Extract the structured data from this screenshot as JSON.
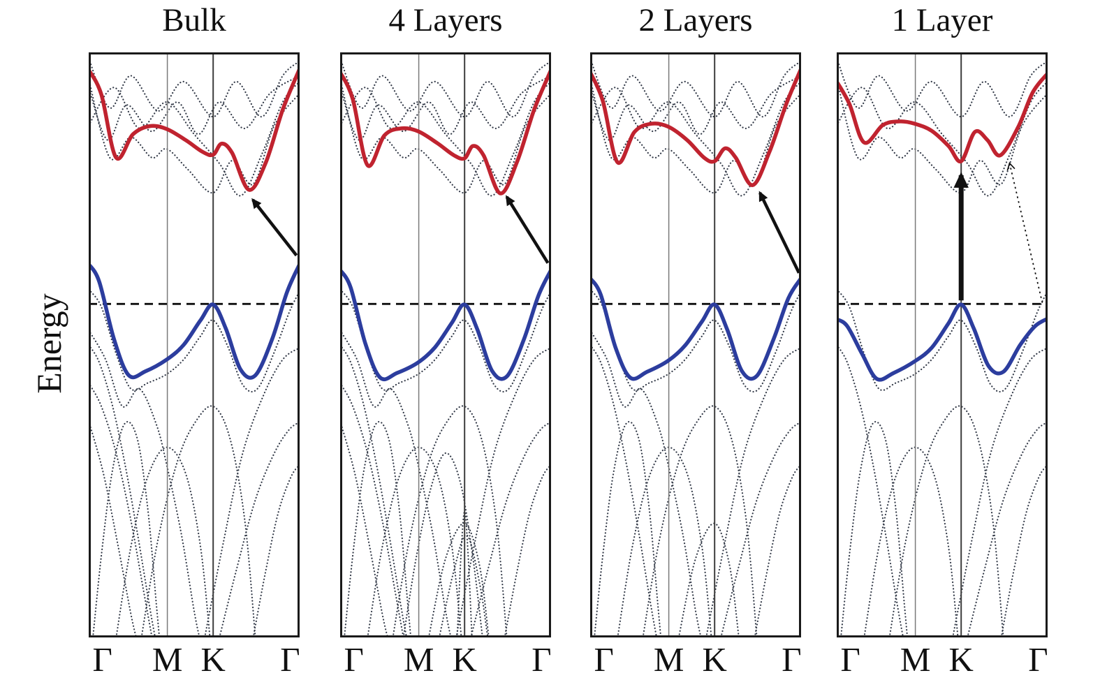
{
  "chart_data": {
    "type": "line",
    "chart_kind": "electronic-band-structure",
    "ylabel": "Energy",
    "x_path": [
      "Γ",
      "M",
      "K",
      "Γ"
    ],
    "x_tick_positions": [
      0.065,
      0.373,
      0.59,
      0.955
    ],
    "k_line_positions": [
      0.373,
      0.59
    ],
    "fermi_level_y": 0.43,
    "coordinate_note": "normalized panel coordinates: x runs 0-1 along the k-path Γ-M-K-Γ; y 0 = panel top, 1 = panel bottom (energy decreases downward); no numeric energy scale is shown",
    "legend": "none",
    "grid": "off",
    "colors": {
      "conduction_band": "#c0232f",
      "valence_band": "#2c3d9e",
      "background_bands": "#343b49",
      "fermi_line": "#111111",
      "arrow": "#111111",
      "frame": "#1a1a1a"
    },
    "background_bands": [
      [
        [
          0,
          0.01
        ],
        [
          0.1,
          0.095
        ],
        [
          0.2,
          0.04
        ],
        [
          0.33,
          0.1
        ],
        [
          0.45,
          0.05
        ],
        [
          0.59,
          0.11
        ],
        [
          0.7,
          0.05
        ],
        [
          0.82,
          0.11
        ],
        [
          0.92,
          0.04
        ],
        [
          1,
          0.015
        ]
      ],
      [
        [
          0,
          0.06
        ],
        [
          0.09,
          0.15
        ],
        [
          0.18,
          0.09
        ],
        [
          0.3,
          0.135
        ],
        [
          0.42,
          0.085
        ],
        [
          0.52,
          0.14
        ],
        [
          0.62,
          0.085
        ],
        [
          0.74,
          0.13
        ],
        [
          0.86,
          0.07
        ],
        [
          1,
          0.04
        ]
      ],
      [
        [
          0,
          0.125
        ],
        [
          0.12,
          0.06
        ],
        [
          0.24,
          0.13
        ],
        [
          0.37,
          0.085
        ],
        [
          0.5,
          0.14
        ],
        [
          0.62,
          0.19
        ],
        [
          0.72,
          0.245
        ],
        [
          0.82,
          0.175
        ],
        [
          0.92,
          0.085
        ],
        [
          1,
          0.05
        ]
      ],
      [
        [
          0,
          0.045
        ],
        [
          0.1,
          0.18
        ],
        [
          0.2,
          0.145
        ],
        [
          0.3,
          0.18
        ],
        [
          0.37,
          0.165
        ],
        [
          0.47,
          0.2
        ],
        [
          0.59,
          0.24
        ],
        [
          0.68,
          0.185
        ],
        [
          0.78,
          0.225
        ],
        [
          0.88,
          0.125
        ],
        [
          1,
          0.07
        ]
      ],
      [
        [
          0,
          0.405
        ],
        [
          0.06,
          0.435
        ],
        [
          0.13,
          0.515
        ],
        [
          0.2,
          0.575
        ],
        [
          0.28,
          0.565
        ],
        [
          0.37,
          0.55
        ],
        [
          0.45,
          0.525
        ],
        [
          0.53,
          0.485
        ],
        [
          0.59,
          0.458
        ],
        [
          0.66,
          0.503
        ],
        [
          0.73,
          0.568
        ],
        [
          0.8,
          0.575
        ],
        [
          0.88,
          0.512
        ],
        [
          0.95,
          0.445
        ],
        [
          1,
          0.408
        ]
      ],
      [
        [
          0,
          0.5
        ],
        [
          0.05,
          0.53
        ],
        [
          0.11,
          0.6
        ],
        [
          0.17,
          0.7
        ],
        [
          0.23,
          0.82
        ],
        [
          0.29,
          0.95
        ],
        [
          0.315,
          1.0
        ]
      ],
      [
        [
          0,
          0.565
        ],
        [
          0.06,
          0.605
        ],
        [
          0.13,
          0.685
        ],
        [
          0.2,
          0.8
        ],
        [
          0.26,
          0.92
        ],
        [
          0.3,
          1.0
        ]
      ],
      [
        [
          0.02,
          1.0
        ],
        [
          0.06,
          0.86
        ],
        [
          0.11,
          0.72
        ],
        [
          0.17,
          0.635
        ],
        [
          0.23,
          0.66
        ],
        [
          0.28,
          0.78
        ],
        [
          0.32,
          0.94
        ],
        [
          0.335,
          1.0
        ]
      ],
      [
        [
          0.13,
          1.0
        ],
        [
          0.2,
          0.845
        ],
        [
          0.28,
          0.725
        ],
        [
          0.37,
          0.675
        ],
        [
          0.46,
          0.72
        ],
        [
          0.53,
          0.845
        ],
        [
          0.575,
          1.0
        ]
      ],
      [
        [
          0.25,
          1.0
        ],
        [
          0.33,
          0.83
        ],
        [
          0.42,
          0.7
        ],
        [
          0.5,
          0.635
        ],
        [
          0.59,
          0.605
        ],
        [
          0.67,
          0.66
        ],
        [
          0.74,
          0.8
        ],
        [
          0.79,
          1.0
        ]
      ],
      [
        [
          0.42,
          1.0
        ],
        [
          0.5,
          0.865
        ],
        [
          0.59,
          0.805
        ],
        [
          0.66,
          0.875
        ],
        [
          0.705,
          1.0
        ]
      ],
      [
        [
          0.55,
          1.0
        ],
        [
          0.64,
          0.835
        ],
        [
          0.73,
          0.685
        ],
        [
          0.83,
          0.585
        ],
        [
          0.92,
          0.525
        ],
        [
          1,
          0.505
        ]
      ],
      [
        [
          0.62,
          1.0
        ],
        [
          0.7,
          0.885
        ],
        [
          0.79,
          0.765
        ],
        [
          0.88,
          0.685
        ],
        [
          0.95,
          0.645
        ],
        [
          1,
          0.632
        ]
      ],
      [
        [
          0,
          0.63
        ],
        [
          0.07,
          0.72
        ],
        [
          0.14,
          0.845
        ],
        [
          0.2,
          0.96
        ],
        [
          0.225,
          1.0
        ]
      ],
      [
        [
          0.78,
          1.0
        ],
        [
          0.84,
          0.885
        ],
        [
          0.9,
          0.785
        ],
        [
          0.96,
          0.725
        ],
        [
          1,
          0.705
        ]
      ],
      [
        [
          0.555,
          1.0
        ],
        [
          0.573,
          0.86
        ],
        [
          0.59,
          0.785
        ],
        [
          0.607,
          0.86
        ],
        [
          0.625,
          1.0
        ]
      ],
      [
        [
          0,
          0.475
        ],
        [
          0.08,
          0.525
        ],
        [
          0.16,
          0.605
        ],
        [
          0.24,
          0.575
        ],
        [
          0.32,
          0.635
        ],
        [
          0.37,
          0.705
        ],
        [
          0.44,
          0.825
        ],
        [
          0.5,
          0.955
        ],
        [
          0.525,
          1.0
        ]
      ],
      [
        [
          0.3,
          1.0
        ],
        [
          0.36,
          0.865
        ],
        [
          0.43,
          0.745
        ],
        [
          0.5,
          0.685
        ],
        [
          0.57,
          0.735
        ],
        [
          0.63,
          0.865
        ],
        [
          0.675,
          1.0
        ]
      ],
      [
        [
          0.47,
          1.0
        ],
        [
          0.54,
          0.885
        ],
        [
          0.6,
          0.825
        ],
        [
          0.66,
          0.905
        ],
        [
          0.7,
          1.0
        ]
      ]
    ],
    "panels": [
      {
        "title": "Bulk",
        "gap_type": "indirect",
        "conduction_band": [
          [
            0,
            0.03
          ],
          [
            0.06,
            0.072
          ],
          [
            0.13,
            0.18
          ],
          [
            0.21,
            0.14
          ],
          [
            0.29,
            0.126
          ],
          [
            0.37,
            0.131
          ],
          [
            0.46,
            0.15
          ],
          [
            0.54,
            0.17
          ],
          [
            0.59,
            0.175
          ],
          [
            0.63,
            0.156
          ],
          [
            0.68,
            0.172
          ],
          [
            0.76,
            0.235
          ],
          [
            0.84,
            0.188
          ],
          [
            0.92,
            0.098
          ],
          [
            1,
            0.028
          ]
        ],
        "valence_band": [
          [
            0,
            0.362
          ],
          [
            0.05,
            0.392
          ],
          [
            0.12,
            0.49
          ],
          [
            0.19,
            0.552
          ],
          [
            0.27,
            0.545
          ],
          [
            0.37,
            0.525
          ],
          [
            0.45,
            0.5
          ],
          [
            0.53,
            0.458
          ],
          [
            0.59,
            0.431
          ],
          [
            0.65,
            0.472
          ],
          [
            0.72,
            0.542
          ],
          [
            0.79,
            0.552
          ],
          [
            0.87,
            0.49
          ],
          [
            0.94,
            0.41
          ],
          [
            1,
            0.362
          ]
        ],
        "background_band_indices": [
          0,
          1,
          2,
          3,
          4,
          5,
          6,
          7,
          8,
          9,
          11,
          12,
          13,
          14,
          16
        ],
        "arrows": [
          {
            "style": "solid",
            "width": 4.5,
            "from": [
              0.985,
              0.347
            ],
            "to": [
              0.778,
              0.252
            ]
          }
        ]
      },
      {
        "title": "4 Layers",
        "gap_type": "indirect",
        "conduction_band": [
          [
            0,
            0.034
          ],
          [
            0.06,
            0.08
          ],
          [
            0.13,
            0.193
          ],
          [
            0.21,
            0.142
          ],
          [
            0.29,
            0.13
          ],
          [
            0.37,
            0.135
          ],
          [
            0.46,
            0.155
          ],
          [
            0.54,
            0.176
          ],
          [
            0.59,
            0.181
          ],
          [
            0.63,
            0.16
          ],
          [
            0.68,
            0.176
          ],
          [
            0.76,
            0.241
          ],
          [
            0.84,
            0.186
          ],
          [
            0.92,
            0.098
          ],
          [
            1,
            0.03
          ]
        ],
        "valence_band": [
          [
            0,
            0.372
          ],
          [
            0.05,
            0.402
          ],
          [
            0.12,
            0.498
          ],
          [
            0.19,
            0.556
          ],
          [
            0.27,
            0.548
          ],
          [
            0.37,
            0.53
          ],
          [
            0.45,
            0.504
          ],
          [
            0.53,
            0.462
          ],
          [
            0.59,
            0.431
          ],
          [
            0.65,
            0.473
          ],
          [
            0.72,
            0.544
          ],
          [
            0.79,
            0.554
          ],
          [
            0.87,
            0.492
          ],
          [
            0.94,
            0.416
          ],
          [
            1,
            0.372
          ]
        ],
        "background_band_indices": [
          0,
          1,
          2,
          3,
          4,
          5,
          6,
          7,
          8,
          9,
          10,
          11,
          12,
          13,
          14,
          15,
          16,
          17,
          18
        ],
        "arrows": [
          {
            "style": "solid",
            "width": 4.5,
            "from": [
              0.985,
              0.36
            ],
            "to": [
              0.79,
              0.247
            ]
          }
        ]
      },
      {
        "title": "2 Layers",
        "gap_type": "indirect",
        "conduction_band": [
          [
            0,
            0.034
          ],
          [
            0.06,
            0.083
          ],
          [
            0.13,
            0.188
          ],
          [
            0.21,
            0.136
          ],
          [
            0.29,
            0.122
          ],
          [
            0.37,
            0.127
          ],
          [
            0.46,
            0.15
          ],
          [
            0.54,
            0.18
          ],
          [
            0.59,
            0.186
          ],
          [
            0.64,
            0.164
          ],
          [
            0.69,
            0.18
          ],
          [
            0.77,
            0.227
          ],
          [
            0.85,
            0.17
          ],
          [
            0.93,
            0.088
          ],
          [
            1,
            0.028
          ]
        ],
        "valence_band": [
          [
            0,
            0.386
          ],
          [
            0.05,
            0.414
          ],
          [
            0.12,
            0.504
          ],
          [
            0.19,
            0.556
          ],
          [
            0.27,
            0.546
          ],
          [
            0.37,
            0.527
          ],
          [
            0.45,
            0.501
          ],
          [
            0.53,
            0.46
          ],
          [
            0.59,
            0.431
          ],
          [
            0.65,
            0.474
          ],
          [
            0.72,
            0.545
          ],
          [
            0.79,
            0.553
          ],
          [
            0.87,
            0.49
          ],
          [
            0.94,
            0.42
          ],
          [
            1,
            0.386
          ]
        ],
        "background_band_indices": [
          0,
          1,
          2,
          3,
          4,
          5,
          7,
          8,
          9,
          10,
          11,
          12,
          14,
          16
        ],
        "arrows": [
          {
            "style": "solid",
            "width": 4.5,
            "from": [
              0.99,
              0.377
            ],
            "to": [
              0.805,
              0.24
            ]
          }
        ]
      },
      {
        "title": "1 Layer",
        "gap_type": "direct",
        "conduction_band": [
          [
            0,
            0.05
          ],
          [
            0.06,
            0.088
          ],
          [
            0.13,
            0.154
          ],
          [
            0.22,
            0.124
          ],
          [
            0.3,
            0.118
          ],
          [
            0.37,
            0.122
          ],
          [
            0.45,
            0.134
          ],
          [
            0.53,
            0.16
          ],
          [
            0.59,
            0.186
          ],
          [
            0.655,
            0.136
          ],
          [
            0.715,
            0.15
          ],
          [
            0.775,
            0.176
          ],
          [
            0.86,
            0.128
          ],
          [
            0.93,
            0.068
          ],
          [
            1,
            0.036
          ]
        ],
        "valence_band": [
          [
            0,
            0.456
          ],
          [
            0.05,
            0.468
          ],
          [
            0.12,
            0.515
          ],
          [
            0.19,
            0.558
          ],
          [
            0.27,
            0.548
          ],
          [
            0.37,
            0.528
          ],
          [
            0.45,
            0.505
          ],
          [
            0.53,
            0.463
          ],
          [
            0.59,
            0.431
          ],
          [
            0.65,
            0.472
          ],
          [
            0.72,
            0.536
          ],
          [
            0.79,
            0.546
          ],
          [
            0.87,
            0.5
          ],
          [
            0.94,
            0.468
          ],
          [
            1,
            0.455
          ]
        ],
        "background_band_indices": [
          0,
          2,
          3,
          4,
          5,
          7,
          8,
          9,
          11,
          12,
          14
        ],
        "arrows": [
          {
            "style": "solid",
            "width": 7,
            "from": [
              0.59,
              0.424
            ],
            "to": [
              0.59,
              0.21
            ]
          },
          {
            "style": "dotted",
            "width": 1.8,
            "from": [
              0.975,
              0.428
            ],
            "to": [
              0.82,
              0.19
            ]
          }
        ]
      }
    ]
  }
}
